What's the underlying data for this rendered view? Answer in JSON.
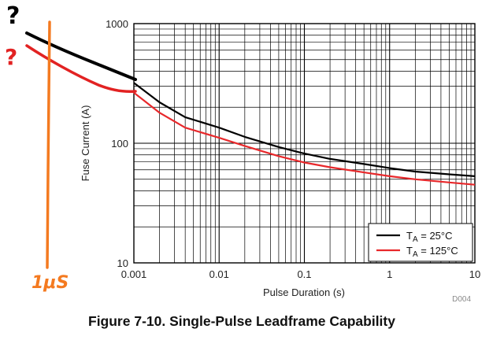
{
  "figure_caption": "Figure 7-10. Single-Pulse Leadframe Capability",
  "figure_code": "D004",
  "annotations": {
    "black_mark": "?",
    "red_mark": "?",
    "orange_label": "1μS"
  },
  "colors": {
    "series_25c": "#000000",
    "series_125c": "#e8282b",
    "annotation_orange": "#f47a20",
    "grid": "#000000"
  },
  "chart_data": {
    "type": "line",
    "title": "",
    "xlabel": "Pulse Duration (s)",
    "ylabel": "Fuse Current (A)",
    "x_scale": "log",
    "y_scale": "log",
    "xlim": [
      0.001,
      10
    ],
    "ylim": [
      10,
      1000
    ],
    "x_ticks": [
      "0.001",
      "0.01",
      "0.1",
      "1",
      "10"
    ],
    "y_ticks": [
      "1000",
      "100",
      "10"
    ],
    "grid": true,
    "legend_position": "bottom-right",
    "series": [
      {
        "name": "T_A = 25°C",
        "label_main": "T",
        "label_sub": "A",
        "label_rest": " = 25°C",
        "color": "#000000",
        "x": [
          0.001,
          0.002,
          0.004,
          0.01,
          0.02,
          0.05,
          0.1,
          0.2,
          0.5,
          1,
          2,
          5,
          10
        ],
        "y": [
          320,
          220,
          165,
          135,
          113,
          93,
          82,
          74,
          67,
          62,
          58,
          55,
          53
        ]
      },
      {
        "name": "T_A = 125°C",
        "label_main": "T",
        "label_sub": "A",
        "label_rest": " = 125°C",
        "color": "#e8282b",
        "x": [
          0.001,
          0.002,
          0.004,
          0.01,
          0.02,
          0.05,
          0.1,
          0.2,
          0.5,
          1,
          2,
          5,
          10
        ],
        "y": [
          265,
          180,
          135,
          111,
          95,
          78,
          69,
          63,
          57,
          53,
          50,
          47,
          45
        ]
      }
    ]
  }
}
